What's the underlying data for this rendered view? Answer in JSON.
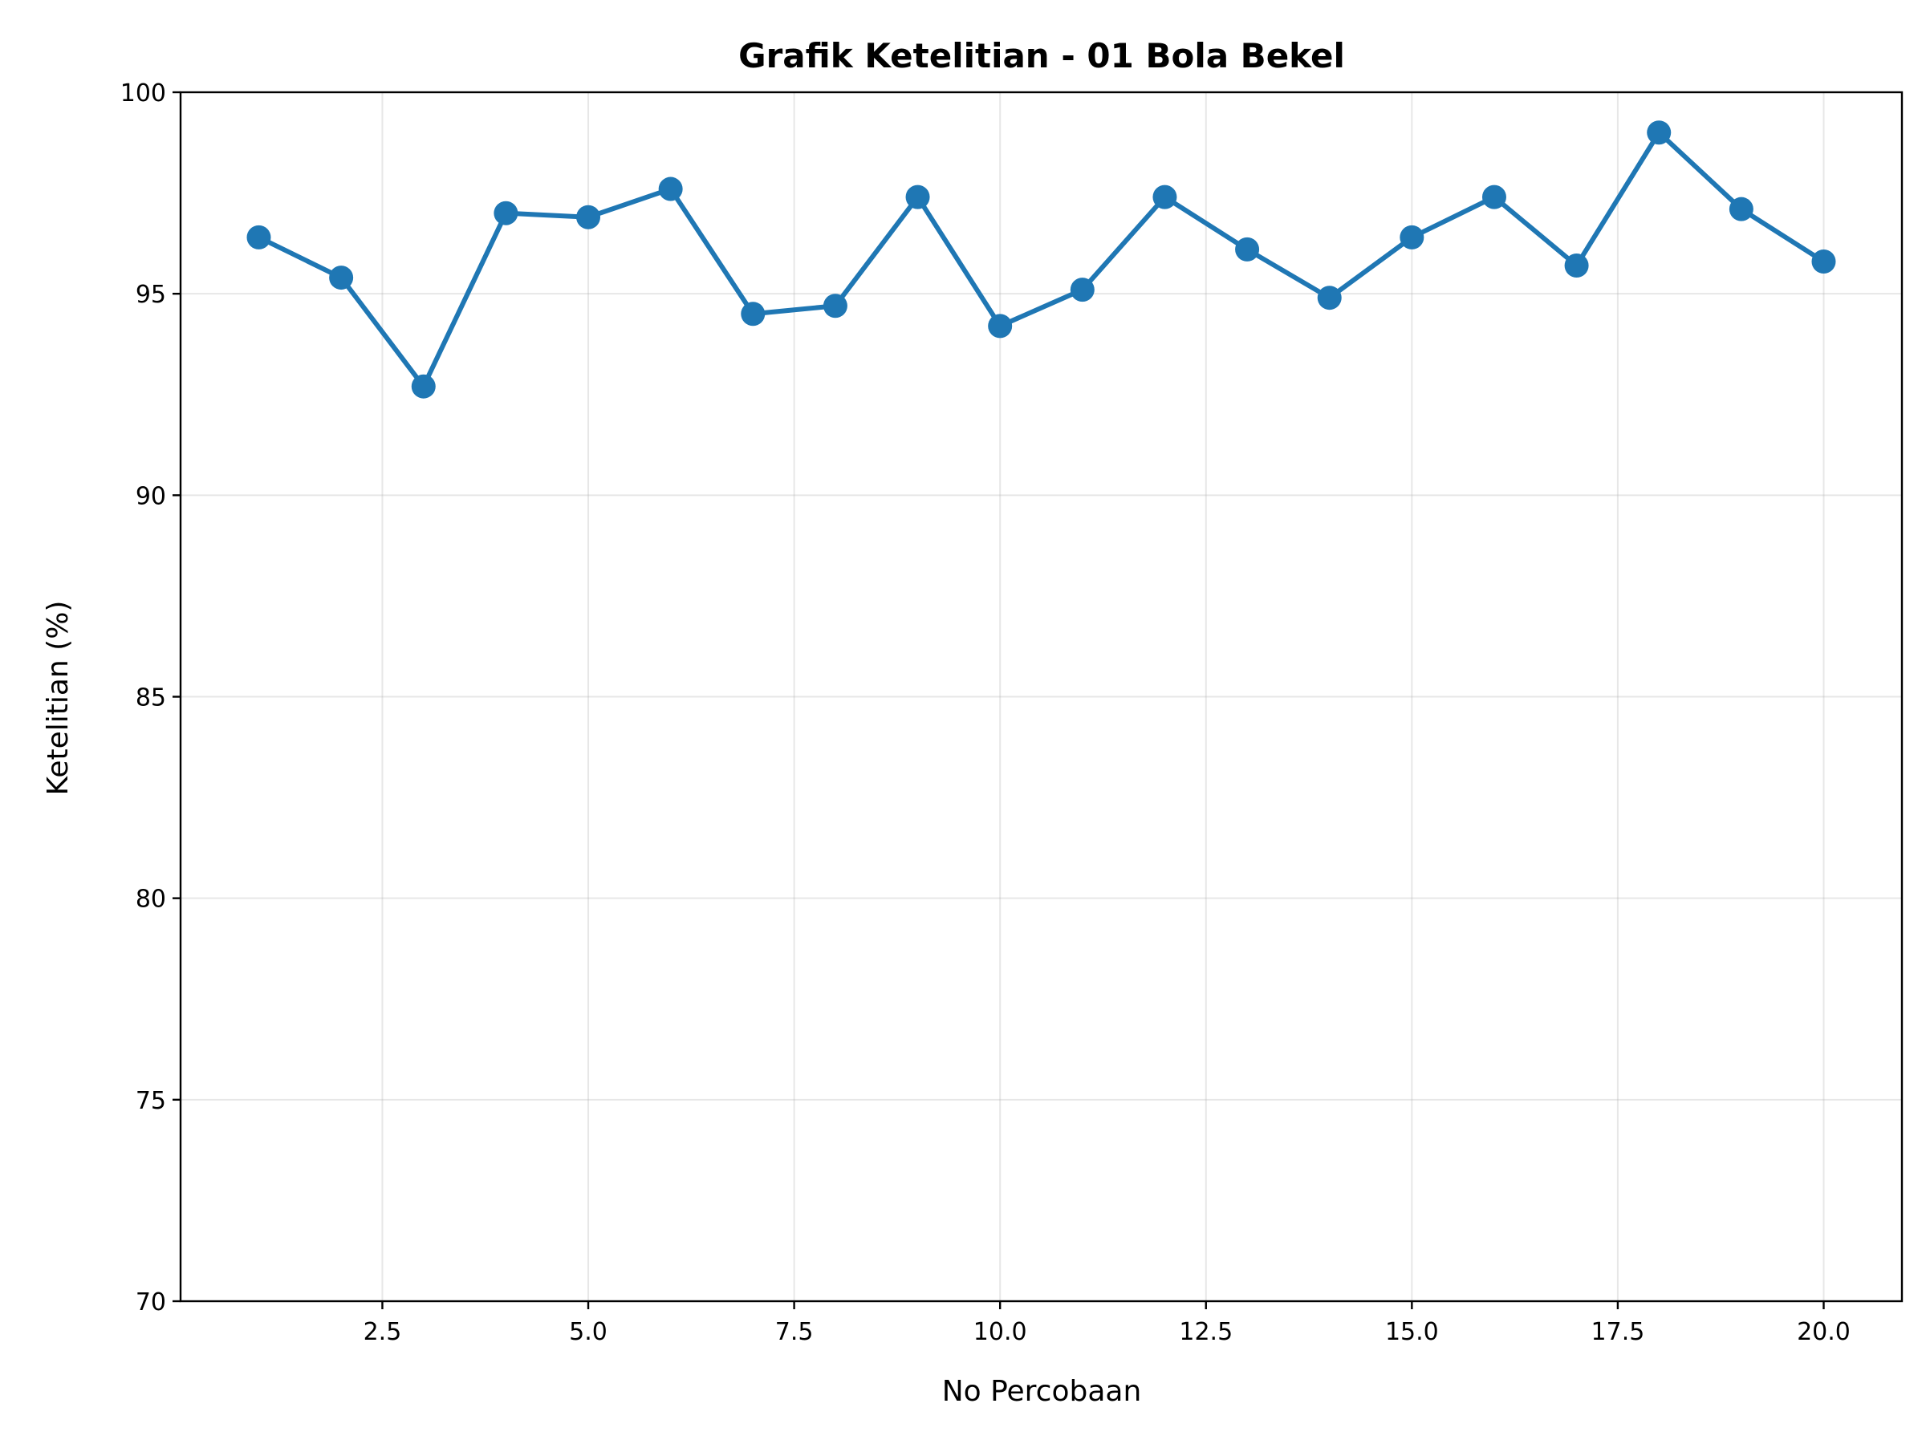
{
  "chart_data": {
    "type": "line",
    "title": "Grafik Ketelitian - 01 Bola Bekel",
    "xlabel": "No Percobaan",
    "ylabel": "Ketelitian (%)",
    "x": [
      1,
      2,
      3,
      4,
      5,
      6,
      7,
      8,
      9,
      10,
      11,
      12,
      13,
      14,
      15,
      16,
      17,
      18,
      19,
      20
    ],
    "series": [
      {
        "values": [
          96.4,
          95.4,
          92.7,
          97.0,
          96.9,
          97.6,
          94.5,
          94.7,
          97.4,
          94.2,
          95.1,
          97.4,
          96.1,
          94.9,
          96.4,
          97.4,
          95.7,
          99.0,
          97.1,
          95.8
        ],
        "color": "#1f77b4",
        "marker": "circle"
      }
    ],
    "xlim": [
      0.05,
      20.95
    ],
    "ylim": [
      70,
      100
    ],
    "xticks": [
      2.5,
      5.0,
      7.5,
      10.0,
      12.5,
      15.0,
      17.5,
      20.0
    ],
    "xtick_labels": [
      "2.5",
      "5.0",
      "7.5",
      "10.0",
      "12.5",
      "15.0",
      "17.5",
      "20.0"
    ],
    "yticks": [
      70,
      75,
      80,
      85,
      90,
      95,
      100
    ],
    "ytick_labels": [
      "70",
      "75",
      "80",
      "85",
      "90",
      "95",
      "100"
    ],
    "grid": true
  }
}
